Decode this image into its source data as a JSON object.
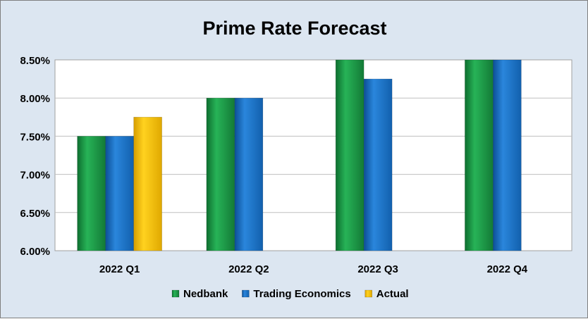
{
  "chart_data": {
    "type": "bar",
    "title": "Prime Rate Forecast",
    "xlabel": "",
    "ylabel": "",
    "categories": [
      "2022 Q1",
      "2022 Q2",
      "2022 Q3",
      "2022 Q4"
    ],
    "series": [
      {
        "name": "Nedbank",
        "values": [
          7.5,
          8.0,
          8.5,
          8.5
        ],
        "color": "#1f9e4a"
      },
      {
        "name": "Trading Economics",
        "values": [
          7.5,
          8.0,
          8.25,
          8.5
        ],
        "color": "#1a74c9"
      },
      {
        "name": "Actual",
        "values": [
          7.75,
          null,
          null,
          null
        ],
        "color": "#f5bf00"
      }
    ],
    "ylim": [
      6.0,
      8.5
    ],
    "yticks": [
      "6.00%",
      "6.50%",
      "7.00%",
      "7.50%",
      "8.00%",
      "8.50%"
    ],
    "ytick_values": [
      6.0,
      6.5,
      7.0,
      7.5,
      8.0,
      8.5
    ],
    "grid": true,
    "legend_position": "bottom",
    "background": "#dce6f1",
    "plot_background": "#ffffff"
  }
}
